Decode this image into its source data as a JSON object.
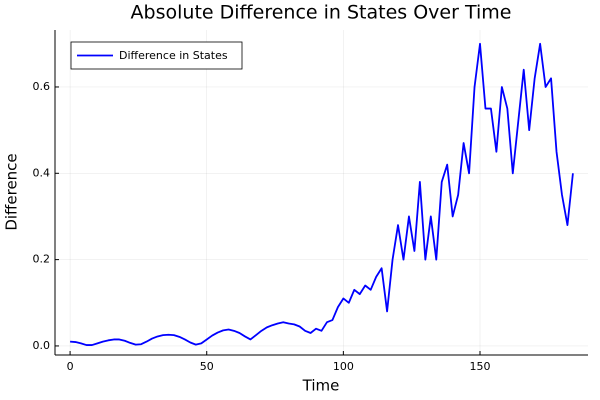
{
  "chart_data": {
    "type": "line",
    "title": "Absolute Difference in States Over Time",
    "x_label": "Time",
    "y_label": "Difference",
    "x": [
      0,
      2,
      4,
      6,
      8,
      10,
      12,
      14,
      16,
      18,
      20,
      22,
      24,
      26,
      28,
      30,
      32,
      34,
      36,
      38,
      40,
      42,
      44,
      46,
      48,
      50,
      52,
      54,
      56,
      58,
      60,
      62,
      64,
      66,
      68,
      70,
      72,
      74,
      76,
      78,
      80,
      82,
      84,
      86,
      88,
      90,
      92,
      94,
      96,
      98,
      100,
      102,
      104,
      106,
      108,
      110,
      112,
      114,
      116,
      118,
      120,
      122,
      124,
      126,
      128,
      130,
      132,
      134,
      136,
      138,
      140,
      142,
      144,
      146,
      148,
      150,
      152,
      154,
      156,
      158,
      160,
      162,
      164,
      166,
      168,
      170,
      172,
      174,
      176,
      178,
      180,
      182,
      184
    ],
    "series": [
      {
        "name": "Difference in States",
        "color": "#0000ff",
        "values": [
          0.01,
          0.009,
          0.006,
          0.002,
          0.002,
          0.006,
          0.01,
          0.013,
          0.015,
          0.015,
          0.012,
          0.007,
          0.003,
          0.004,
          0.01,
          0.017,
          0.022,
          0.025,
          0.026,
          0.025,
          0.021,
          0.015,
          0.008,
          0.003,
          0.006,
          0.015,
          0.024,
          0.031,
          0.036,
          0.038,
          0.035,
          0.03,
          0.022,
          0.015,
          0.025,
          0.035,
          0.043,
          0.048,
          0.052,
          0.055,
          0.052,
          0.05,
          0.045,
          0.035,
          0.03,
          0.04,
          0.035,
          0.055,
          0.06,
          0.09,
          0.11,
          0.1,
          0.13,
          0.12,
          0.14,
          0.13,
          0.16,
          0.18,
          0.08,
          0.2,
          0.28,
          0.2,
          0.3,
          0.22,
          0.38,
          0.2,
          0.3,
          0.2,
          0.38,
          0.42,
          0.3,
          0.35,
          0.47,
          0.4,
          0.6,
          0.7,
          0.55,
          0.55,
          0.45,
          0.6,
          0.55,
          0.4,
          0.52,
          0.64,
          0.5,
          0.62,
          0.7,
          0.6,
          0.62,
          0.45,
          0.35,
          0.28,
          0.4
        ]
      }
    ],
    "xlim": [
      -5.52,
      189.52
    ],
    "xticks": [
      0,
      50,
      100,
      150
    ],
    "ylim": [
      -0.021,
      0.732
    ],
    "yticks": [
      {
        "value": 0,
        "label": "0.0"
      },
      0.2,
      0.4,
      0.6
    ],
    "grid": true,
    "legend": "top-left"
  }
}
